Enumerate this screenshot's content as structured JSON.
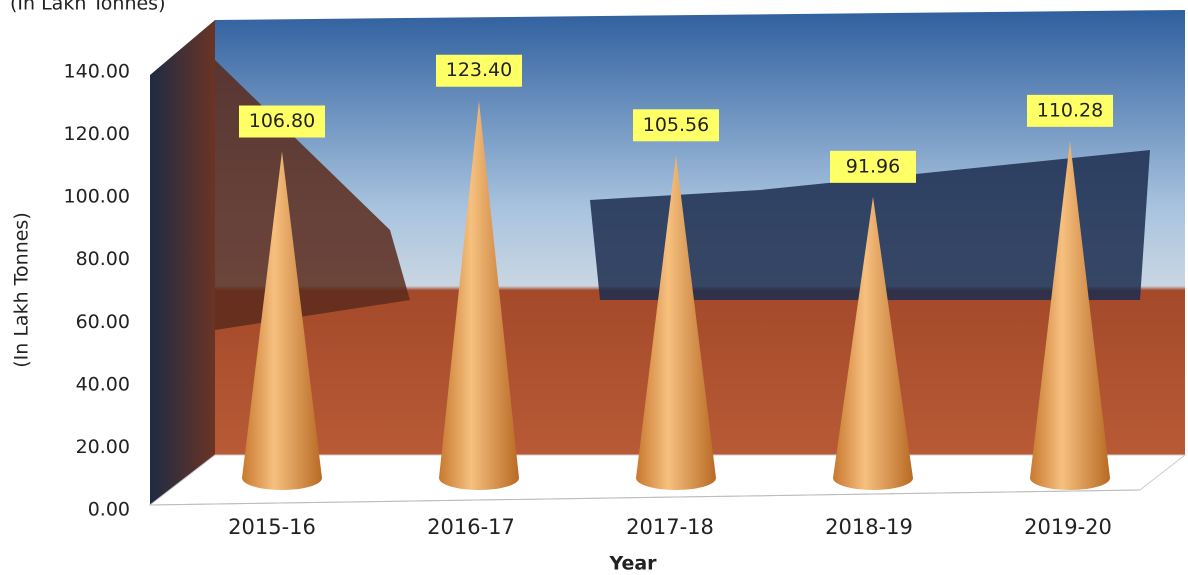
{
  "chart_data": {
    "type": "cone",
    "title": "(In Lakh Tonnes)",
    "y_label": "(In Lakh Tonnes)",
    "x_label": "Year",
    "categories": [
      "2015-16",
      "2016-17",
      "2017-18",
      "2018-19",
      "2019-20"
    ],
    "values": [
      106.8,
      123.4,
      105.56,
      91.96,
      110.28
    ],
    "value_labels": [
      "106.80",
      "123.40",
      "105.56",
      "91.96",
      "110.28"
    ],
    "color": "#e8a35c",
    "ylim": [
      0,
      140
    ],
    "yticks": [
      {
        "value": 0,
        "label": "0.00"
      },
      {
        "value": 20,
        "label": "20.00"
      },
      {
        "value": 40,
        "label": "40.00"
      },
      {
        "value": 60,
        "label": "60.00"
      },
      {
        "value": 80,
        "label": "80.00"
      },
      {
        "value": 100,
        "label": "100.00"
      },
      {
        "value": 120,
        "label": "120.00"
      },
      {
        "value": 140,
        "label": "140.00"
      }
    ]
  }
}
